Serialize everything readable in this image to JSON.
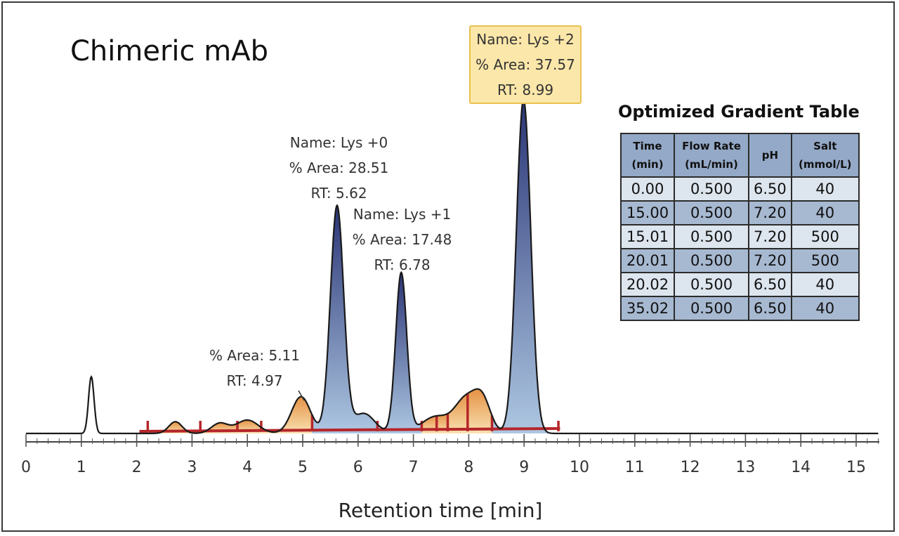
{
  "title": "Chimeric mAb",
  "colors": {
    "trace": "#1a1a1a",
    "baseline": "#b5262a",
    "peak_fill_top": "#1f2a6e",
    "peak_fill_bottom": "#a9c4e0",
    "minor_fill_top": "#e07f24",
    "minor_fill_bottom": "#f8dca4",
    "label_box": "#fbe7a9"
  },
  "annotations": {
    "lys0": {
      "name": "Name: Lys +0",
      "area": "% Area: 28.51",
      "rt": "RT: 5.62"
    },
    "lys1": {
      "name": "Name: Lys +1",
      "area": "% Area: 17.48",
      "rt": "RT: 6.78"
    },
    "lys2": {
      "name": "Name: Lys +2",
      "area": "% Area: 37.57",
      "rt": "RT: 8.99"
    },
    "minor": {
      "area": "% Area: 5.11",
      "rt": "RT: 4.97"
    }
  },
  "table": {
    "title": "Optimized Gradient Table",
    "headers": [
      {
        "l1": "Time",
        "l2": "(min)"
      },
      {
        "l1": "Flow Rate",
        "l2": "(mL/min)"
      },
      {
        "l1": "pH",
        "l2": ""
      },
      {
        "l1": "Salt",
        "l2": "(mmol/L)"
      }
    ],
    "rows": [
      [
        "0.00",
        "0.500",
        "6.50",
        "40"
      ],
      [
        "15.00",
        "0.500",
        "7.20",
        "40"
      ],
      [
        "15.01",
        "0.500",
        "7.20",
        "500"
      ],
      [
        "20.01",
        "0.500",
        "7.20",
        "500"
      ],
      [
        "20.02",
        "0.500",
        "6.50",
        "40"
      ],
      [
        "35.02",
        "0.500",
        "6.50",
        "40"
      ]
    ]
  },
  "chart_data": {
    "type": "line",
    "title": "Chimeric mAb",
    "xlabel": "Retention time [min]",
    "ylabel": "",
    "xlim": [
      0,
      15.4
    ],
    "x_ticks": [
      "0",
      "1",
      "2",
      "3",
      "4",
      "5",
      "6",
      "7",
      "8",
      "9",
      "10",
      "11",
      "12",
      "13",
      "14",
      "15"
    ],
    "grid": false,
    "integration_range": [
      2.05,
      9.65
    ],
    "integration_marks": [
      2.2,
      3.15,
      3.82,
      4.25,
      5.17,
      6.35,
      7.15,
      7.42,
      7.62,
      7.98,
      8.42,
      9.62
    ],
    "peaks": [
      {
        "rt": 1.18,
        "height": 0.17,
        "width": 0.05
      },
      {
        "rt": 2.7,
        "height": 0.035,
        "width": 0.12
      },
      {
        "rt": 3.5,
        "height": 0.03,
        "width": 0.15
      },
      {
        "rt": 4.0,
        "height": 0.04,
        "width": 0.2
      },
      {
        "rt": 4.97,
        "height": 0.11,
        "width": 0.17
      },
      {
        "rt": 5.62,
        "height": 0.68,
        "width": 0.12
      },
      {
        "rt": 6.1,
        "height": 0.06,
        "width": 0.2
      },
      {
        "rt": 6.78,
        "height": 0.48,
        "width": 0.1
      },
      {
        "rt": 7.4,
        "height": 0.05,
        "width": 0.25
      },
      {
        "rt": 7.95,
        "height": 0.1,
        "width": 0.2
      },
      {
        "rt": 8.25,
        "height": 0.09,
        "width": 0.15
      },
      {
        "rt": 8.99,
        "height": 1.0,
        "width": 0.13
      }
    ]
  }
}
